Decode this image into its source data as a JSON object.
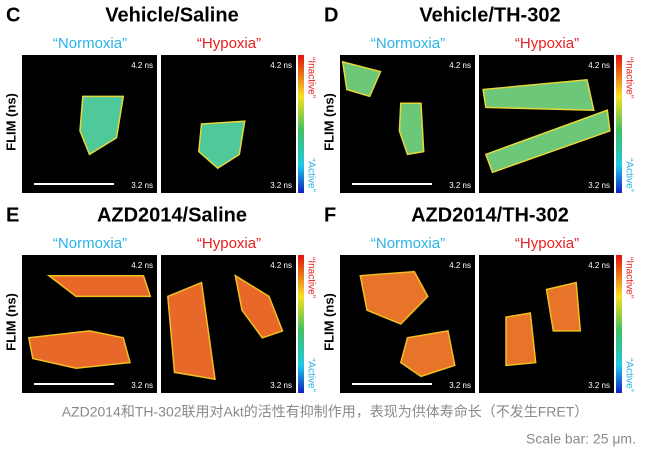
{
  "panels": [
    {
      "letter": "C",
      "title": "Vehicle/Saline",
      "conditions": [
        "“Normoxia”",
        "“Hypoxia”"
      ],
      "ylabel": "FLIM (ns)",
      "scale_max": "4.2 ns",
      "scale_min": "3.2 ns",
      "inactive": "“Inactive”",
      "active": "“Active”"
    },
    {
      "letter": "D",
      "title": "Vehicle/TH-302",
      "conditions": [
        "“Normoxia”",
        "“Hypoxia”"
      ],
      "ylabel": "FLIM (ns)",
      "scale_max": "4.2 ns",
      "scale_min": "3.2 ns",
      "inactive": "“Inactive”",
      "active": "“Active”"
    },
    {
      "letter": "E",
      "title": "AZD2014/Saline",
      "conditions": [
        "“Normoxia”",
        "“Hypoxia”"
      ],
      "ylabel": "FLIM (ns)",
      "scale_max": "4.2 ns",
      "scale_min": "3.2 ns",
      "inactive": "“Inactive”",
      "active": "“Active”"
    },
    {
      "letter": "F",
      "title": "AZD2014/TH-302",
      "conditions": [
        "“Normoxia”",
        "“Hypoxia”"
      ],
      "ylabel": "FLIM (ns)",
      "scale_max": "4.2 ns",
      "scale_min": "3.2 ns",
      "inactive": "“Inactive”",
      "active": "“Active”"
    }
  ],
  "caption": "AZD2014和TH-302联用对Akt的活性有抑制作用，表现为供体寿命长（不发生FRET）",
  "scale_bar": "Scale bar: 25 μm."
}
